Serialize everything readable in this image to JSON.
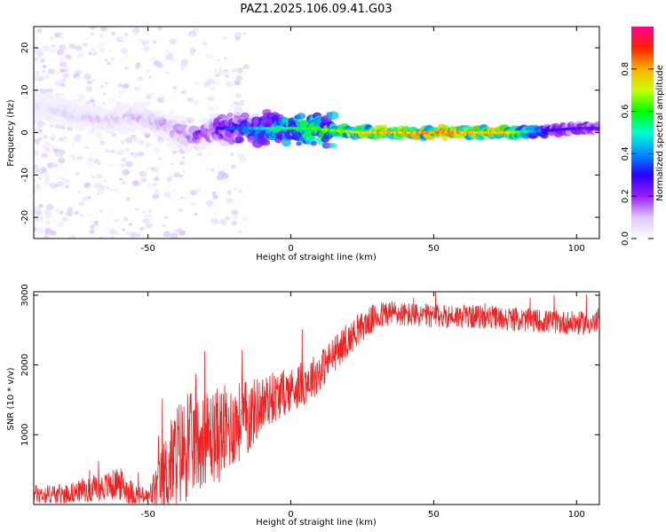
{
  "title": "PAZ1.2025.106.09.41.G03",
  "chart_data": [
    {
      "type": "heatmap",
      "xlabel": "Height of straight line (km)",
      "ylabel": "Frequency (Hz)",
      "xlim": [
        -90,
        108
      ],
      "ylim": [
        -25,
        25
      ],
      "xticks": [
        -50,
        0,
        50,
        100
      ],
      "yticks": [
        -20,
        -10,
        0,
        10,
        20
      ],
      "grid": false,
      "colorbar": {
        "label": "Normalized spectral amplitude",
        "range": [
          0,
          1
        ],
        "ticks": [
          "0.0",
          "0.2",
          "0.4",
          "0.6",
          "0.8"
        ],
        "colors": [
          "#ffffff",
          "#dcc8ff",
          "#9a1cff",
          "#2b00ff",
          "#0090ff",
          "#00ffd0",
          "#00ff00",
          "#c8ff00",
          "#ffb000",
          "#ff2000",
          "#ff0090"
        ]
      },
      "ridge": {
        "x": [
          -85,
          -75,
          -65,
          -55,
          -45,
          -35,
          -25,
          -15,
          -5,
          5,
          15,
          25,
          50,
          75,
          90,
          100,
          108
        ],
        "frequency": [
          6,
          4,
          3,
          4,
          2,
          -1,
          1,
          1,
          1,
          1,
          0.5,
          0,
          0,
          0,
          0.5,
          1,
          1
        ],
        "amplitude": [
          0.08,
          0.1,
          0.12,
          0.12,
          0.15,
          0.2,
          0.3,
          0.4,
          0.55,
          0.6,
          0.65,
          0.75,
          0.8,
          0.75,
          0.3,
          0.25,
          0.25
        ]
      }
    },
    {
      "type": "line",
      "xlabel": "Height of straight line (km)",
      "ylabel": "SNR (10 * v/v)",
      "xlim": [
        -90,
        108
      ],
      "ylim": [
        0,
        3050
      ],
      "xticks": [
        -50,
        0,
        50,
        100
      ],
      "yticks": [
        1000,
        2000,
        3000
      ],
      "grid": false,
      "series": [
        {
          "color": "#ee2222",
          "x": [
            -90,
            -80,
            -70,
            -60,
            -55,
            -50,
            -45,
            -40,
            -35,
            -30,
            -25,
            -20,
            -15,
            -10,
            -5,
            0,
            5,
            10,
            15,
            20,
            25,
            30,
            35,
            40,
            50,
            60,
            70,
            80,
            90,
            100,
            108
          ],
          "mean": [
            150,
            150,
            210,
            300,
            150,
            100,
            350,
            700,
            850,
            950,
            1000,
            1150,
            1250,
            1450,
            1550,
            1650,
            1750,
            1900,
            2150,
            2350,
            2550,
            2700,
            2750,
            2720,
            2700,
            2700,
            2680,
            2650,
            2620,
            2600,
            2600
          ],
          "spread": [
            140,
            140,
            170,
            240,
            170,
            120,
            500,
            800,
            750,
            650,
            700,
            600,
            550,
            400,
            350,
            320,
            320,
            300,
            260,
            230,
            210,
            200,
            190,
            180,
            170,
            170,
            170,
            170,
            170,
            170,
            170
          ]
        }
      ]
    }
  ]
}
